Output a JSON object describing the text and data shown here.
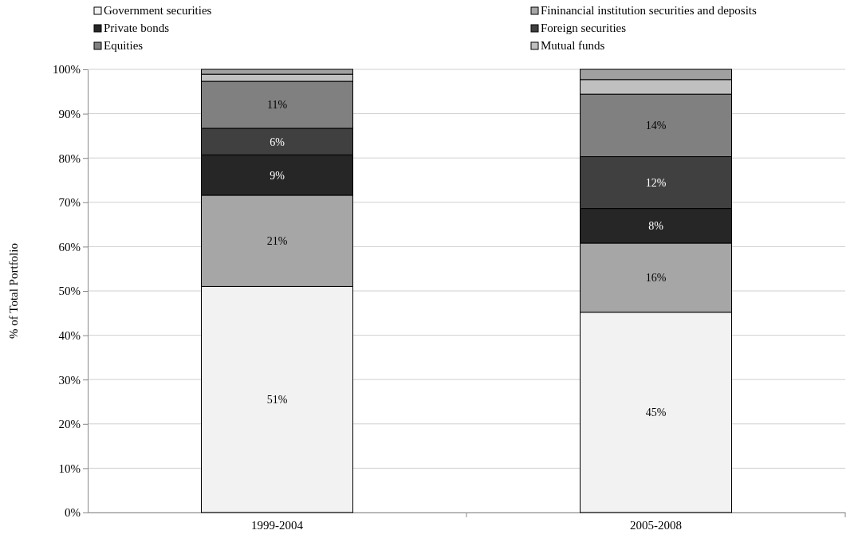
{
  "chart_data": {
    "type": "bar",
    "stacked": true,
    "ylabel": "% of Total Portfolio",
    "categories": [
      "1999-2004",
      "2005-2008"
    ],
    "series": [
      {
        "name": "Government securities",
        "color": "#f2f2f2",
        "values": [
          51.0,
          45.2
        ],
        "value_labels": [
          "51%",
          "45%"
        ]
      },
      {
        "name": "Fininancial institution securities and deposits",
        "color": "#a6a6a6",
        "values": [
          20.6,
          15.6
        ],
        "value_labels": [
          "21%",
          "16%"
        ]
      },
      {
        "name": "Private bonds",
        "color": "#262626",
        "values": [
          9.1,
          7.8
        ],
        "value_labels": [
          "9%",
          "8%"
        ]
      },
      {
        "name": "Foreign securities",
        "color": "#404040",
        "values": [
          6.0,
          11.7
        ],
        "value_labels": [
          "6%",
          "12%"
        ]
      },
      {
        "name": "Equities",
        "color": "#808080",
        "values": [
          10.6,
          14.1
        ],
        "value_labels": [
          "11%",
          "14%"
        ]
      },
      {
        "name": "Mutual funds",
        "color": "#c0c0c0",
        "values": [
          1.6,
          3.3
        ],
        "value_labels": [
          null,
          null
        ]
      },
      {
        "color": "#a0a0a0",
        "values": [
          1.1,
          2.3
        ],
        "value_labels": [
          null,
          null
        ]
      }
    ],
    "ylim": [
      0,
      100
    ],
    "yticks": [
      {
        "value": 0,
        "label": "0%"
      },
      {
        "value": 10,
        "label": "10%"
      },
      {
        "value": 20,
        "label": "20%"
      },
      {
        "value": 30,
        "label": "30%"
      },
      {
        "value": 40,
        "label": "40%"
      },
      {
        "value": 50,
        "label": "50%"
      },
      {
        "value": 60,
        "label": "60%"
      },
      {
        "value": 70,
        "label": "70%"
      },
      {
        "value": 80,
        "label": "80%"
      },
      {
        "value": 90,
        "label": "90%"
      },
      {
        "value": 100,
        "label": "100%"
      }
    ],
    "grid": "y",
    "legend": "top"
  }
}
